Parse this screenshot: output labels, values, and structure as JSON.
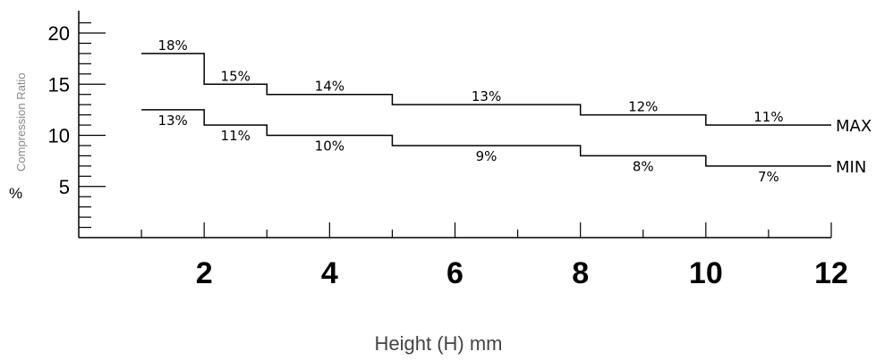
{
  "chart_data": {
    "type": "line",
    "ylabel": "Compression Ratio",
    "ylabel_unit": "%",
    "xlabel": "Height (H)  mm",
    "xlim": [
      0,
      12
    ],
    "ylim": [
      0,
      22
    ],
    "x_ticks": [
      "2",
      "4",
      "6",
      "8",
      "10",
      "12"
    ],
    "y_ticks": [
      "5",
      "10",
      "15",
      "20"
    ],
    "series": [
      {
        "name": "MAX",
        "steps": [
          {
            "x_start": 1,
            "x_end": 2,
            "value": 18,
            "label": "18%"
          },
          {
            "x_start": 2,
            "x_end": 3,
            "value": 15,
            "label": "15%"
          },
          {
            "x_start": 3,
            "x_end": 5,
            "value": 14,
            "label": "14%"
          },
          {
            "x_start": 5,
            "x_end": 8,
            "value": 13,
            "label": "13%"
          },
          {
            "x_start": 8,
            "x_end": 10,
            "value": 12,
            "label": "12%"
          },
          {
            "x_start": 10,
            "x_end": 12,
            "value": 11,
            "label": "11%"
          }
        ]
      },
      {
        "name": "MIN",
        "steps": [
          {
            "x_start": 1,
            "x_end": 2,
            "value": 12.5,
            "label": "13%"
          },
          {
            "x_start": 2,
            "x_end": 3,
            "value": 11,
            "label": "11%"
          },
          {
            "x_start": 3,
            "x_end": 5,
            "value": 10,
            "label": "10%"
          },
          {
            "x_start": 5,
            "x_end": 8,
            "value": 9,
            "label": "9%"
          },
          {
            "x_start": 8,
            "x_end": 10,
            "value": 8,
            "label": "8%"
          },
          {
            "x_start": 10,
            "x_end": 12,
            "value": 7,
            "label": "7%"
          }
        ]
      }
    ]
  }
}
